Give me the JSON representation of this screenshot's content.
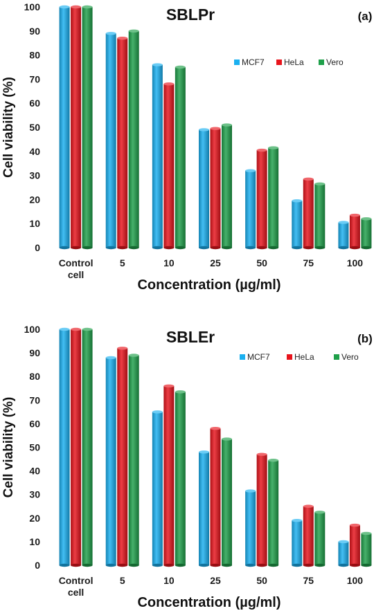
{
  "chart_data": [
    {
      "type": "bar",
      "title": "SBLPr",
      "panel_label": "(a)",
      "xlabel": "Concentration (µg/ml)",
      "ylabel": "Cell viability (%)",
      "ylim": [
        0,
        100
      ],
      "yticks": [
        0,
        10,
        20,
        30,
        40,
        50,
        60,
        70,
        80,
        90,
        100
      ],
      "categories": [
        "Control cell",
        "5",
        "10",
        "25",
        "50",
        "75",
        "100"
      ],
      "legend_position": "top-right",
      "series": [
        {
          "name": "MCF7",
          "color": "#1ab0f0",
          "values": [
            100,
            89,
            76,
            49,
            32,
            19.5,
            10.5
          ]
        },
        {
          "name": "HeLa",
          "color": "#e8141c",
          "values": [
            100,
            87,
            68,
            49.5,
            40.5,
            28.5,
            13.5
          ]
        },
        {
          "name": "Vero",
          "color": "#1fa04a",
          "values": [
            100,
            90,
            75,
            51,
            41.5,
            26.5,
            12
          ]
        }
      ]
    },
    {
      "type": "bar",
      "title": "SBLEr",
      "panel_label": "(b)",
      "xlabel": "Concentration (µg/ml)",
      "ylabel": "Cell viability (%)",
      "ylim": [
        0,
        100
      ],
      "yticks": [
        0,
        10,
        20,
        30,
        40,
        50,
        60,
        70,
        80,
        90,
        100
      ],
      "categories": [
        "Control cell",
        "5",
        "10",
        "25",
        "50",
        "75",
        "100"
      ],
      "legend_position": "top-right",
      "series": [
        {
          "name": "MCF7",
          "color": "#1ab0f0",
          "values": [
            100,
            88,
            65,
            48,
            31.5,
            19,
            10
          ]
        },
        {
          "name": "HeLa",
          "color": "#e8141c",
          "values": [
            100,
            92,
            76,
            58,
            47,
            25,
            17
          ]
        },
        {
          "name": "Vero",
          "color": "#1fa04a",
          "values": [
            100,
            89,
            73.5,
            53.5,
            44.5,
            22.5,
            13.5
          ]
        }
      ]
    }
  ]
}
